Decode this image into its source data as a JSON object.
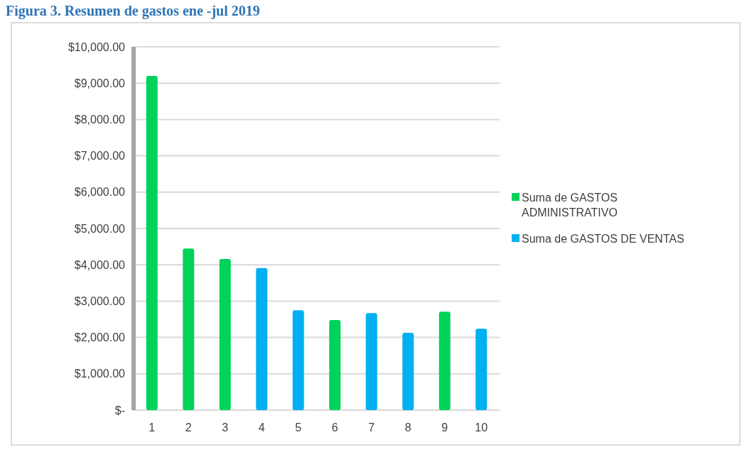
{
  "chart_data": {
    "type": "bar",
    "title": "Figura 3. Resumen de gastos ene -jul 2019",
    "categories": [
      "1",
      "2",
      "3",
      "4",
      "5",
      "6",
      "7",
      "8",
      "9",
      "10"
    ],
    "series": [
      {
        "name": "Suma de GASTOS ADMINISTRATIVO",
        "color": "#00d25a",
        "values": [
          9200,
          4450,
          4160,
          null,
          null,
          2480,
          null,
          null,
          2710,
          null
        ]
      },
      {
        "name": "Suma de GASTOS DE VENTAS",
        "color": "#00b0f0",
        "values": [
          null,
          null,
          null,
          3910,
          2750,
          null,
          2670,
          2130,
          null,
          2240
        ]
      }
    ],
    "ylim": [
      0,
      10000
    ],
    "yticks": [
      {
        "value": 0,
        "label": "$-"
      },
      {
        "value": 1000,
        "label": "$1,000.00"
      },
      {
        "value": 2000,
        "label": "$2,000.00"
      },
      {
        "value": 3000,
        "label": "$3,000.00"
      },
      {
        "value": 4000,
        "label": "$4,000.00"
      },
      {
        "value": 5000,
        "label": "$5,000.00"
      },
      {
        "value": 6000,
        "label": "$6,000.00"
      },
      {
        "value": 7000,
        "label": "$7,000.00"
      },
      {
        "value": 8000,
        "label": "$8,000.00"
      },
      {
        "value": 9000,
        "label": "$9,000.00"
      },
      {
        "value": 10000,
        "label": "$10,000.00"
      }
    ],
    "grid": "y",
    "legend": "right"
  }
}
